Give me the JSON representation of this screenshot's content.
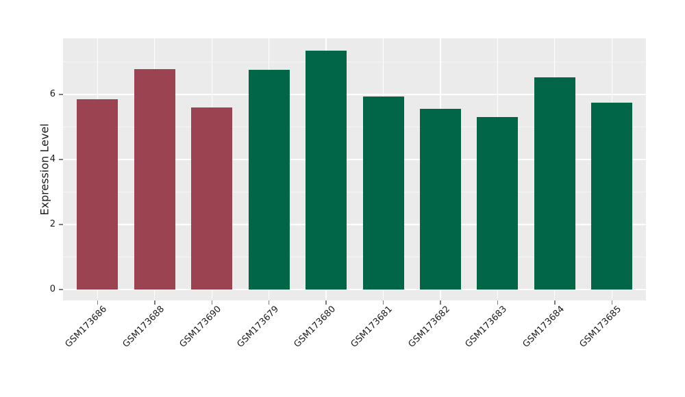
{
  "figure": {
    "background": "#FFFFFF"
  },
  "chart_data": {
    "type": "bar",
    "title": "",
    "xlabel": "",
    "ylabel": "Expression Level",
    "categories": [
      "GSM173686",
      "GSM173688",
      "GSM173690",
      "GSM173679",
      "GSM173680",
      "GSM173681",
      "GSM173682",
      "GSM173683",
      "GSM173684",
      "GSM173685"
    ],
    "values": [
      5.86,
      6.77,
      5.59,
      6.75,
      7.34,
      5.93,
      5.56,
      5.3,
      6.53,
      5.74
    ],
    "bar_colors": [
      "#9C4352",
      "#9C4352",
      "#9C4352",
      "#006647",
      "#006647",
      "#006647",
      "#006647",
      "#006647",
      "#006647",
      "#006647"
    ],
    "group_colors": {
      "first_group": "#9C4352",
      "second_group": "#006647"
    },
    "ylim": [
      -0.37,
      7.73
    ],
    "yticks_major": [
      0,
      2,
      4,
      6
    ],
    "yticks_minor": [
      1,
      3,
      5,
      7
    ],
    "grid": true,
    "legend": false,
    "x_tick_rotation_deg": 45,
    "plot_background": "#EBEBEB",
    "gridline_color": "#FFFFFF",
    "tick_mark_color": "#7A7A7A",
    "text_color": "#1A1A1A"
  }
}
